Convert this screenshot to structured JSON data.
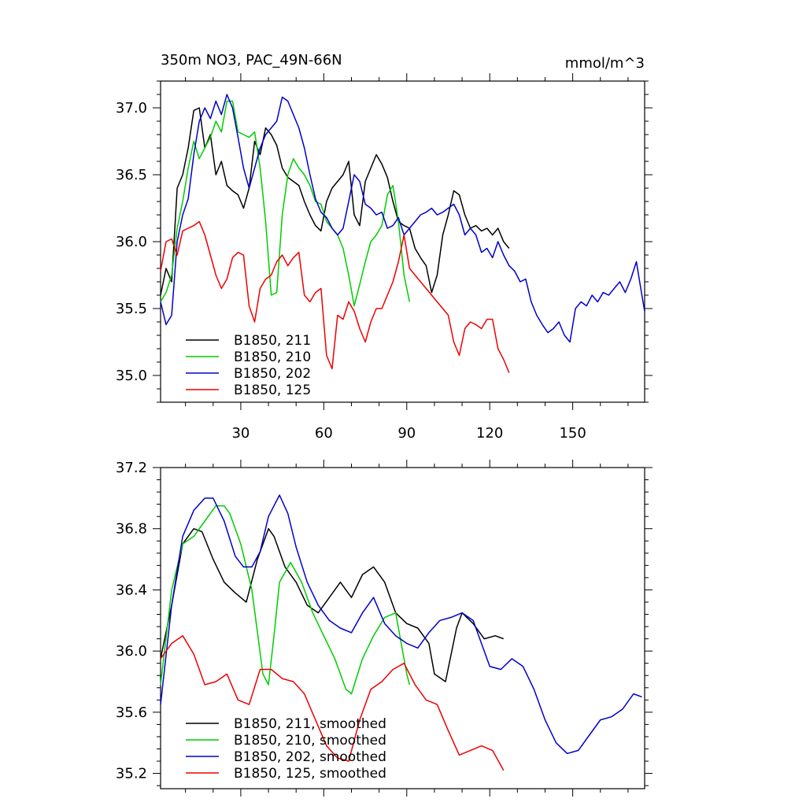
{
  "header": {
    "title": "350m NO3, PAC_49N-66N",
    "units": "mmol/m^3"
  },
  "chart_data": [
    {
      "type": "line",
      "name": "raw",
      "xlim": [
        1,
        176
      ],
      "ylim": [
        34.8,
        37.2
      ],
      "xticks": [
        30,
        60,
        90,
        120,
        150
      ],
      "yticks": [
        35.0,
        35.5,
        36.0,
        36.5,
        37.0
      ],
      "ytick_labels": [
        "35.0",
        "35.5",
        "36.0",
        "36.5",
        "37.0"
      ],
      "legend": {
        "position": "bottom-left"
      },
      "series": [
        {
          "name": "B1850, 211",
          "color": "#000000",
          "x": [
            1,
            3,
            5,
            7,
            9,
            11,
            13,
            15,
            17,
            19,
            21,
            23,
            25,
            27,
            29,
            31,
            33,
            35,
            37,
            39,
            41,
            43,
            45,
            47,
            49,
            51,
            53,
            55,
            57,
            59,
            61,
            63,
            65,
            67,
            69,
            71,
            73,
            75,
            77,
            79,
            81,
            83,
            85,
            87,
            89,
            91,
            93,
            95,
            97,
            99,
            101,
            103,
            105,
            107,
            109,
            111,
            113,
            115,
            117,
            119,
            121,
            123,
            125,
            127
          ],
          "values": [
            35.6,
            35.8,
            35.7,
            36.4,
            36.5,
            36.7,
            36.98,
            37.0,
            36.7,
            36.8,
            36.5,
            36.6,
            36.42,
            36.38,
            36.35,
            36.25,
            36.4,
            36.75,
            36.65,
            36.85,
            36.8,
            36.72,
            36.55,
            36.48,
            36.45,
            36.42,
            36.3,
            36.2,
            36.12,
            36.08,
            36.3,
            36.4,
            36.45,
            36.5,
            36.6,
            36.2,
            36.12,
            36.45,
            36.55,
            36.65,
            36.58,
            36.48,
            36.3,
            36.15,
            36.12,
            36.1,
            35.95,
            35.88,
            35.82,
            35.62,
            35.75,
            36.05,
            36.2,
            36.38,
            36.35,
            36.2,
            36.1,
            36.12,
            36.08,
            36.1,
            36.05,
            36.1,
            36.0,
            35.95
          ]
        },
        {
          "name": "B1850, 210",
          "color": "#00cc00",
          "x": [
            1,
            3,
            5,
            7,
            9,
            11,
            13,
            15,
            17,
            19,
            21,
            23,
            25,
            27,
            29,
            31,
            33,
            35,
            37,
            39,
            41,
            43,
            45,
            47,
            49,
            51,
            53,
            55,
            57,
            59,
            61,
            63,
            65,
            67,
            69,
            71,
            73,
            75,
            77,
            79,
            81,
            83,
            85,
            87,
            89,
            91
          ],
          "values": [
            35.55,
            35.62,
            35.75,
            36.1,
            36.3,
            36.55,
            36.75,
            36.62,
            36.7,
            36.78,
            36.9,
            36.82,
            37.05,
            37.05,
            36.82,
            36.8,
            36.78,
            36.82,
            36.55,
            36.15,
            35.6,
            35.62,
            36.2,
            36.5,
            36.62,
            36.55,
            36.5,
            36.42,
            36.3,
            36.28,
            36.15,
            36.1,
            36.05,
            35.95,
            35.75,
            35.52,
            35.68,
            35.85,
            36.0,
            36.05,
            36.12,
            36.35,
            36.42,
            36.15,
            35.75,
            35.55
          ]
        },
        {
          "name": "B1850, 202",
          "color": "#0000cc",
          "x": [
            1,
            3,
            5,
            7,
            9,
            11,
            13,
            15,
            17,
            19,
            21,
            23,
            25,
            27,
            29,
            31,
            33,
            35,
            37,
            39,
            41,
            43,
            45,
            47,
            49,
            51,
            53,
            55,
            57,
            59,
            61,
            63,
            65,
            67,
            69,
            71,
            73,
            75,
            77,
            79,
            81,
            83,
            85,
            87,
            89,
            91,
            93,
            95,
            97,
            99,
            101,
            103,
            105,
            107,
            109,
            111,
            113,
            115,
            117,
            119,
            121,
            123,
            125,
            127,
            129,
            131,
            133,
            135,
            137,
            139,
            141,
            143,
            145,
            147,
            149,
            151,
            153,
            155,
            157,
            159,
            161,
            163,
            165,
            167,
            169,
            171,
            173,
            175,
            176
          ],
          "values": [
            35.55,
            35.38,
            35.45,
            36.0,
            36.2,
            36.32,
            36.65,
            36.9,
            37.0,
            36.92,
            37.05,
            36.95,
            37.1,
            37.0,
            36.78,
            36.55,
            36.4,
            36.55,
            36.7,
            36.8,
            36.85,
            36.9,
            37.08,
            37.05,
            36.95,
            36.85,
            36.7,
            36.5,
            36.32,
            36.22,
            36.18,
            36.1,
            36.05,
            36.1,
            36.3,
            36.5,
            36.45,
            36.28,
            36.25,
            36.2,
            36.22,
            36.1,
            36.12,
            36.18,
            36.05,
            36.1,
            36.15,
            36.2,
            36.22,
            36.25,
            36.2,
            36.22,
            36.25,
            36.28,
            36.2,
            36.05,
            36.1,
            36.05,
            35.92,
            35.95,
            35.88,
            36.0,
            35.9,
            35.82,
            35.78,
            35.7,
            35.72,
            35.55,
            35.45,
            35.38,
            35.32,
            35.35,
            35.4,
            35.3,
            35.25,
            35.5,
            35.55,
            35.52,
            35.6,
            35.55,
            35.62,
            35.6,
            35.65,
            35.7,
            35.62,
            35.72,
            35.85,
            35.6,
            35.48
          ]
        },
        {
          "name": "B1850, 125",
          "color": "#ee0000",
          "x": [
            1,
            3,
            5,
            7,
            9,
            11,
            13,
            15,
            17,
            19,
            21,
            23,
            25,
            27,
            29,
            31,
            33,
            35,
            37,
            39,
            41,
            43,
            45,
            47,
            49,
            51,
            53,
            55,
            57,
            59,
            61,
            63,
            65,
            67,
            69,
            71,
            73,
            75,
            77,
            79,
            81,
            83,
            85,
            87,
            89,
            91,
            93,
            95,
            97,
            99,
            101,
            103,
            105,
            107,
            109,
            111,
            113,
            115,
            117,
            119,
            121,
            123,
            125,
            127
          ],
          "values": [
            35.78,
            36.0,
            36.02,
            35.9,
            36.08,
            36.1,
            36.12,
            36.15,
            36.05,
            35.9,
            35.75,
            35.65,
            35.72,
            35.88,
            35.92,
            35.9,
            35.52,
            35.4,
            35.65,
            35.72,
            35.75,
            35.85,
            35.9,
            35.82,
            35.88,
            35.92,
            35.6,
            35.55,
            35.62,
            35.65,
            35.15,
            35.05,
            35.45,
            35.42,
            35.55,
            35.48,
            35.35,
            35.25,
            35.4,
            35.5,
            35.5,
            35.6,
            35.7,
            35.85,
            36.05,
            35.8,
            35.75,
            35.7,
            35.65,
            35.6,
            35.55,
            35.5,
            35.45,
            35.25,
            35.15,
            35.35,
            35.4,
            35.38,
            35.35,
            35.42,
            35.42,
            35.2,
            35.12,
            35.02
          ]
        }
      ]
    },
    {
      "type": "line",
      "name": "smoothed",
      "xlim": [
        1,
        176
      ],
      "ylim": [
        35.1,
        37.2
      ],
      "xticks": [
        30,
        60,
        90,
        120,
        150
      ],
      "yticks": [
        35.2,
        35.6,
        36.0,
        36.4,
        36.8,
        37.2
      ],
      "ytick_labels": [
        "35.2",
        "35.6",
        "36.0",
        "36.4",
        "36.8",
        "37.2"
      ],
      "legend": {
        "position": "bottom-left"
      },
      "series": [
        {
          "name": "B1850, 211, smoothed",
          "color": "#000000",
          "x": [
            1,
            5,
            9,
            13,
            16,
            20,
            24,
            28,
            32,
            36,
            40,
            42,
            46,
            50,
            54,
            58,
            62,
            66,
            70,
            74,
            78,
            82,
            86,
            90,
            94,
            98,
            100,
            104,
            108,
            110,
            114,
            118,
            122,
            125
          ],
          "values": [
            35.95,
            36.3,
            36.7,
            36.8,
            36.78,
            36.6,
            36.45,
            36.38,
            36.32,
            36.6,
            36.8,
            36.75,
            36.55,
            36.45,
            36.3,
            36.25,
            36.35,
            36.45,
            36.35,
            36.5,
            36.55,
            36.45,
            36.25,
            36.18,
            36.15,
            36.05,
            35.85,
            35.8,
            36.15,
            36.25,
            36.18,
            36.08,
            36.1,
            36.08
          ]
        },
        {
          "name": "B1850, 210, smoothed",
          "color": "#00cc00",
          "x": [
            1,
            5,
            9,
            13,
            17,
            21,
            24,
            26,
            30,
            34,
            38,
            40,
            42,
            44,
            48,
            52,
            56,
            60,
            64,
            68,
            70,
            74,
            78,
            82,
            86,
            88,
            90,
            91
          ],
          "values": [
            35.78,
            36.4,
            36.7,
            36.75,
            36.85,
            36.95,
            36.95,
            36.9,
            36.7,
            36.4,
            35.85,
            35.78,
            36.1,
            36.45,
            36.58,
            36.45,
            36.25,
            36.1,
            35.95,
            35.75,
            35.72,
            35.95,
            36.1,
            36.22,
            36.25,
            36.05,
            35.85,
            35.78
          ]
        },
        {
          "name": "B1850, 202, smoothed",
          "color": "#0000cc",
          "x": [
            1,
            5,
            9,
            13,
            17,
            20,
            24,
            28,
            31,
            34,
            37,
            40,
            44,
            47,
            50,
            54,
            58,
            62,
            66,
            70,
            74,
            78,
            82,
            86,
            90,
            94,
            98,
            102,
            106,
            110,
            114,
            118,
            120,
            124,
            128,
            132,
            136,
            140,
            144,
            148,
            152,
            156,
            160,
            164,
            168,
            172,
            175
          ],
          "values": [
            35.65,
            36.3,
            36.75,
            36.92,
            37.0,
            37.0,
            36.85,
            36.62,
            36.55,
            36.55,
            36.65,
            36.88,
            37.02,
            36.9,
            36.68,
            36.45,
            36.3,
            36.2,
            36.15,
            36.12,
            36.25,
            36.35,
            36.18,
            36.1,
            36.05,
            36.02,
            36.12,
            36.2,
            36.22,
            36.25,
            36.2,
            36.0,
            35.9,
            35.88,
            35.95,
            35.9,
            35.75,
            35.55,
            35.4,
            35.33,
            35.35,
            35.45,
            35.55,
            35.57,
            35.62,
            35.72,
            35.7
          ]
        },
        {
          "name": "B1850, 125, smoothed",
          "color": "#ee0000",
          "x": [
            1,
            5,
            9,
            13,
            17,
            21,
            25,
            29,
            33,
            37,
            41,
            45,
            49,
            53,
            57,
            61,
            65,
            69,
            73,
            77,
            81,
            85,
            89,
            93,
            97,
            101,
            105,
            109,
            113,
            117,
            121,
            125
          ],
          "values": [
            35.95,
            36.05,
            36.1,
            35.98,
            35.78,
            35.8,
            35.85,
            35.68,
            35.65,
            35.88,
            35.88,
            35.82,
            35.8,
            35.72,
            35.55,
            35.38,
            35.3,
            35.28,
            35.55,
            35.75,
            35.8,
            35.88,
            35.92,
            35.78,
            35.68,
            35.65,
            35.48,
            35.32,
            35.35,
            35.38,
            35.35,
            35.22
          ]
        }
      ]
    }
  ]
}
